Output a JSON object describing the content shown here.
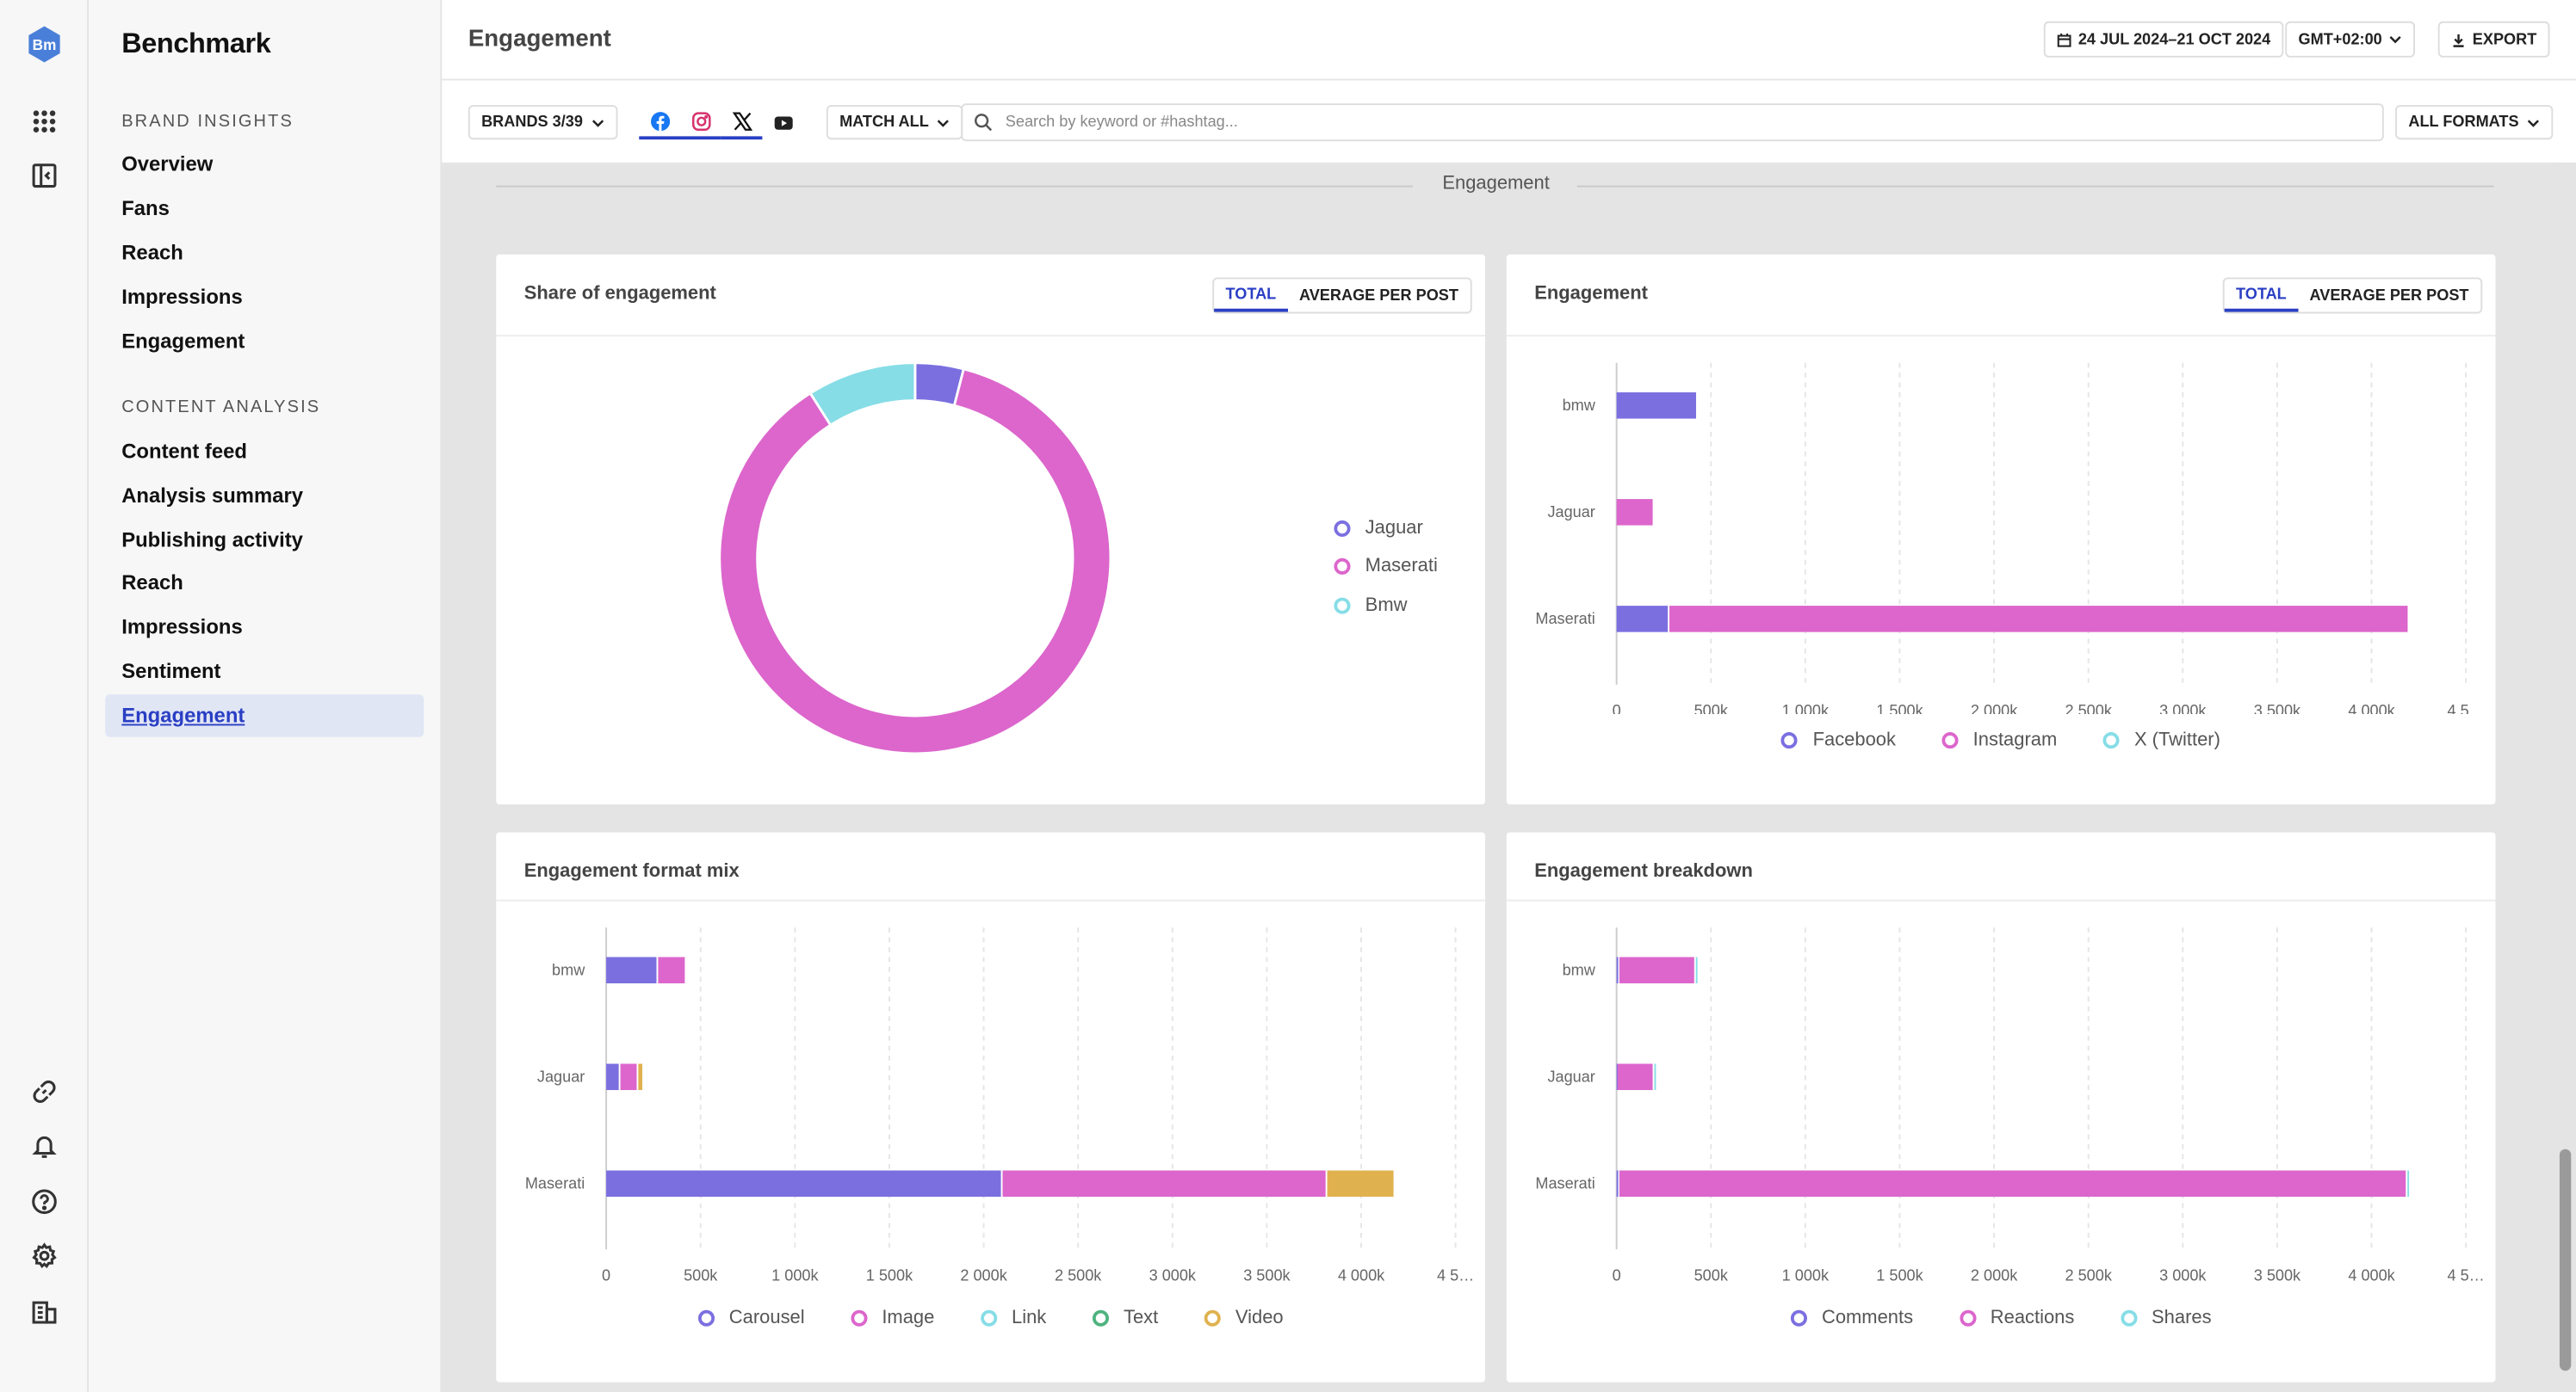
{
  "app": {
    "name": "Benchmark",
    "logo_text": "Bm"
  },
  "nav": {
    "sections": [
      {
        "title": "BRAND INSIGHTS",
        "items": [
          "Overview",
          "Fans",
          "Reach",
          "Impressions",
          "Engagement"
        ]
      },
      {
        "title": "CONTENT ANALYSIS",
        "items": [
          "Content feed",
          "Analysis summary",
          "Publishing activity",
          "Reach",
          "Impressions",
          "Sentiment",
          "Engagement"
        ]
      }
    ],
    "active": "CONTENT ANALYSIS/Engagement"
  },
  "rail_icons": [
    "apps-grid-icon",
    "sidebar-toggle-icon",
    "link-icon",
    "bell-icon",
    "help-icon",
    "settings-icon",
    "buildings-icon"
  ],
  "header": {
    "title": "Engagement",
    "date_range": "24 JUL 2024–21 OCT 2024",
    "timezone": "GMT+02:00",
    "export_label": "EXPORT"
  },
  "filters": {
    "brands": "BRANDS 3/39",
    "networks": [
      "facebook",
      "instagram",
      "x",
      "youtube"
    ],
    "match": "MATCH ALL",
    "search_placeholder": "Search by keyword or #hashtag...",
    "formats": "ALL FORMATS"
  },
  "section_label": "Engagement",
  "colors": {
    "purple": "#7b6fe0",
    "magenta": "#dc66cc",
    "cyan": "#86dde6",
    "green": "#4fb37f",
    "gold": "#e0b24f",
    "accent": "#2a3fc4"
  },
  "cards": {
    "share": {
      "title": "Share of engagement",
      "toggle": [
        "TOTAL",
        "AVERAGE PER POST"
      ]
    },
    "engagement": {
      "title": "Engagement",
      "toggle": [
        "TOTAL",
        "AVERAGE PER POST"
      ]
    },
    "format_mix": {
      "title": "Engagement format mix"
    },
    "breakdown": {
      "title": "Engagement breakdown"
    }
  },
  "chart_data": [
    {
      "type": "pie",
      "title": "Share of engagement",
      "labels": [
        "Jaguar",
        "Maserati",
        "Bmw"
      ],
      "values": [
        4,
        87,
        9
      ],
      "colors": [
        "#7b6fe0",
        "#dc66cc",
        "#86dde6"
      ],
      "legend": "right"
    },
    {
      "type": "bar",
      "orientation": "horizontal",
      "stacked": true,
      "title": "Engagement",
      "categories": [
        "bmw",
        "Jaguar",
        "Maserati"
      ],
      "series": [
        {
          "name": "Facebook",
          "color": "#7b6fe0",
          "values": [
            430000,
            0,
            280000
          ]
        },
        {
          "name": "Instagram",
          "color": "#dc66cc",
          "values": [
            0,
            200000,
            3920000
          ]
        },
        {
          "name": "X (Twitter)",
          "color": "#86dde6",
          "values": [
            0,
            0,
            0
          ]
        }
      ],
      "xticks": [
        "0",
        "500k",
        "1 000k",
        "1 500k",
        "2 000k",
        "2 500k",
        "3 000k",
        "3 500k",
        "4 000k",
        "4 5…"
      ],
      "xlim": [
        0,
        4500000
      ],
      "legend": "bottom"
    },
    {
      "type": "bar",
      "orientation": "horizontal",
      "stacked": true,
      "title": "Engagement format mix",
      "categories": [
        "bmw",
        "Jaguar",
        "Maserati"
      ],
      "series": [
        {
          "name": "Carousel",
          "color": "#7b6fe0",
          "values": [
            275000,
            75000,
            2100000
          ]
        },
        {
          "name": "Image",
          "color": "#dc66cc",
          "values": [
            150000,
            95000,
            1720000
          ]
        },
        {
          "name": "Link",
          "color": "#86dde6",
          "values": [
            0,
            0,
            0
          ]
        },
        {
          "name": "Text",
          "color": "#4fb37f",
          "values": [
            0,
            0,
            0
          ]
        },
        {
          "name": "Video",
          "color": "#e0b24f",
          "values": [
            0,
            30000,
            360000
          ]
        }
      ],
      "xticks": [
        "0",
        "500k",
        "1 000k",
        "1 500k",
        "2 000k",
        "2 500k",
        "3 000k",
        "3 500k",
        "4 000k",
        "4 5…"
      ],
      "xlim": [
        0,
        4500000
      ],
      "legend": "bottom"
    },
    {
      "type": "bar",
      "orientation": "horizontal",
      "stacked": true,
      "title": "Engagement breakdown",
      "categories": [
        "bmw",
        "Jaguar",
        "Maserati"
      ],
      "series": [
        {
          "name": "Comments",
          "color": "#7b6fe0",
          "values": [
            15000,
            5000,
            15000
          ]
        },
        {
          "name": "Reactions",
          "color": "#dc66cc",
          "values": [
            405000,
            195000,
            4175000
          ]
        },
        {
          "name": "Shares",
          "color": "#86dde6",
          "values": [
            10000,
            2000,
            5000
          ]
        }
      ],
      "xticks": [
        "0",
        "500k",
        "1 000k",
        "1 500k",
        "2 000k",
        "2 500k",
        "3 000k",
        "3 500k",
        "4 000k",
        "4 5…"
      ],
      "xlim": [
        0,
        4500000
      ],
      "legend": "bottom"
    }
  ]
}
